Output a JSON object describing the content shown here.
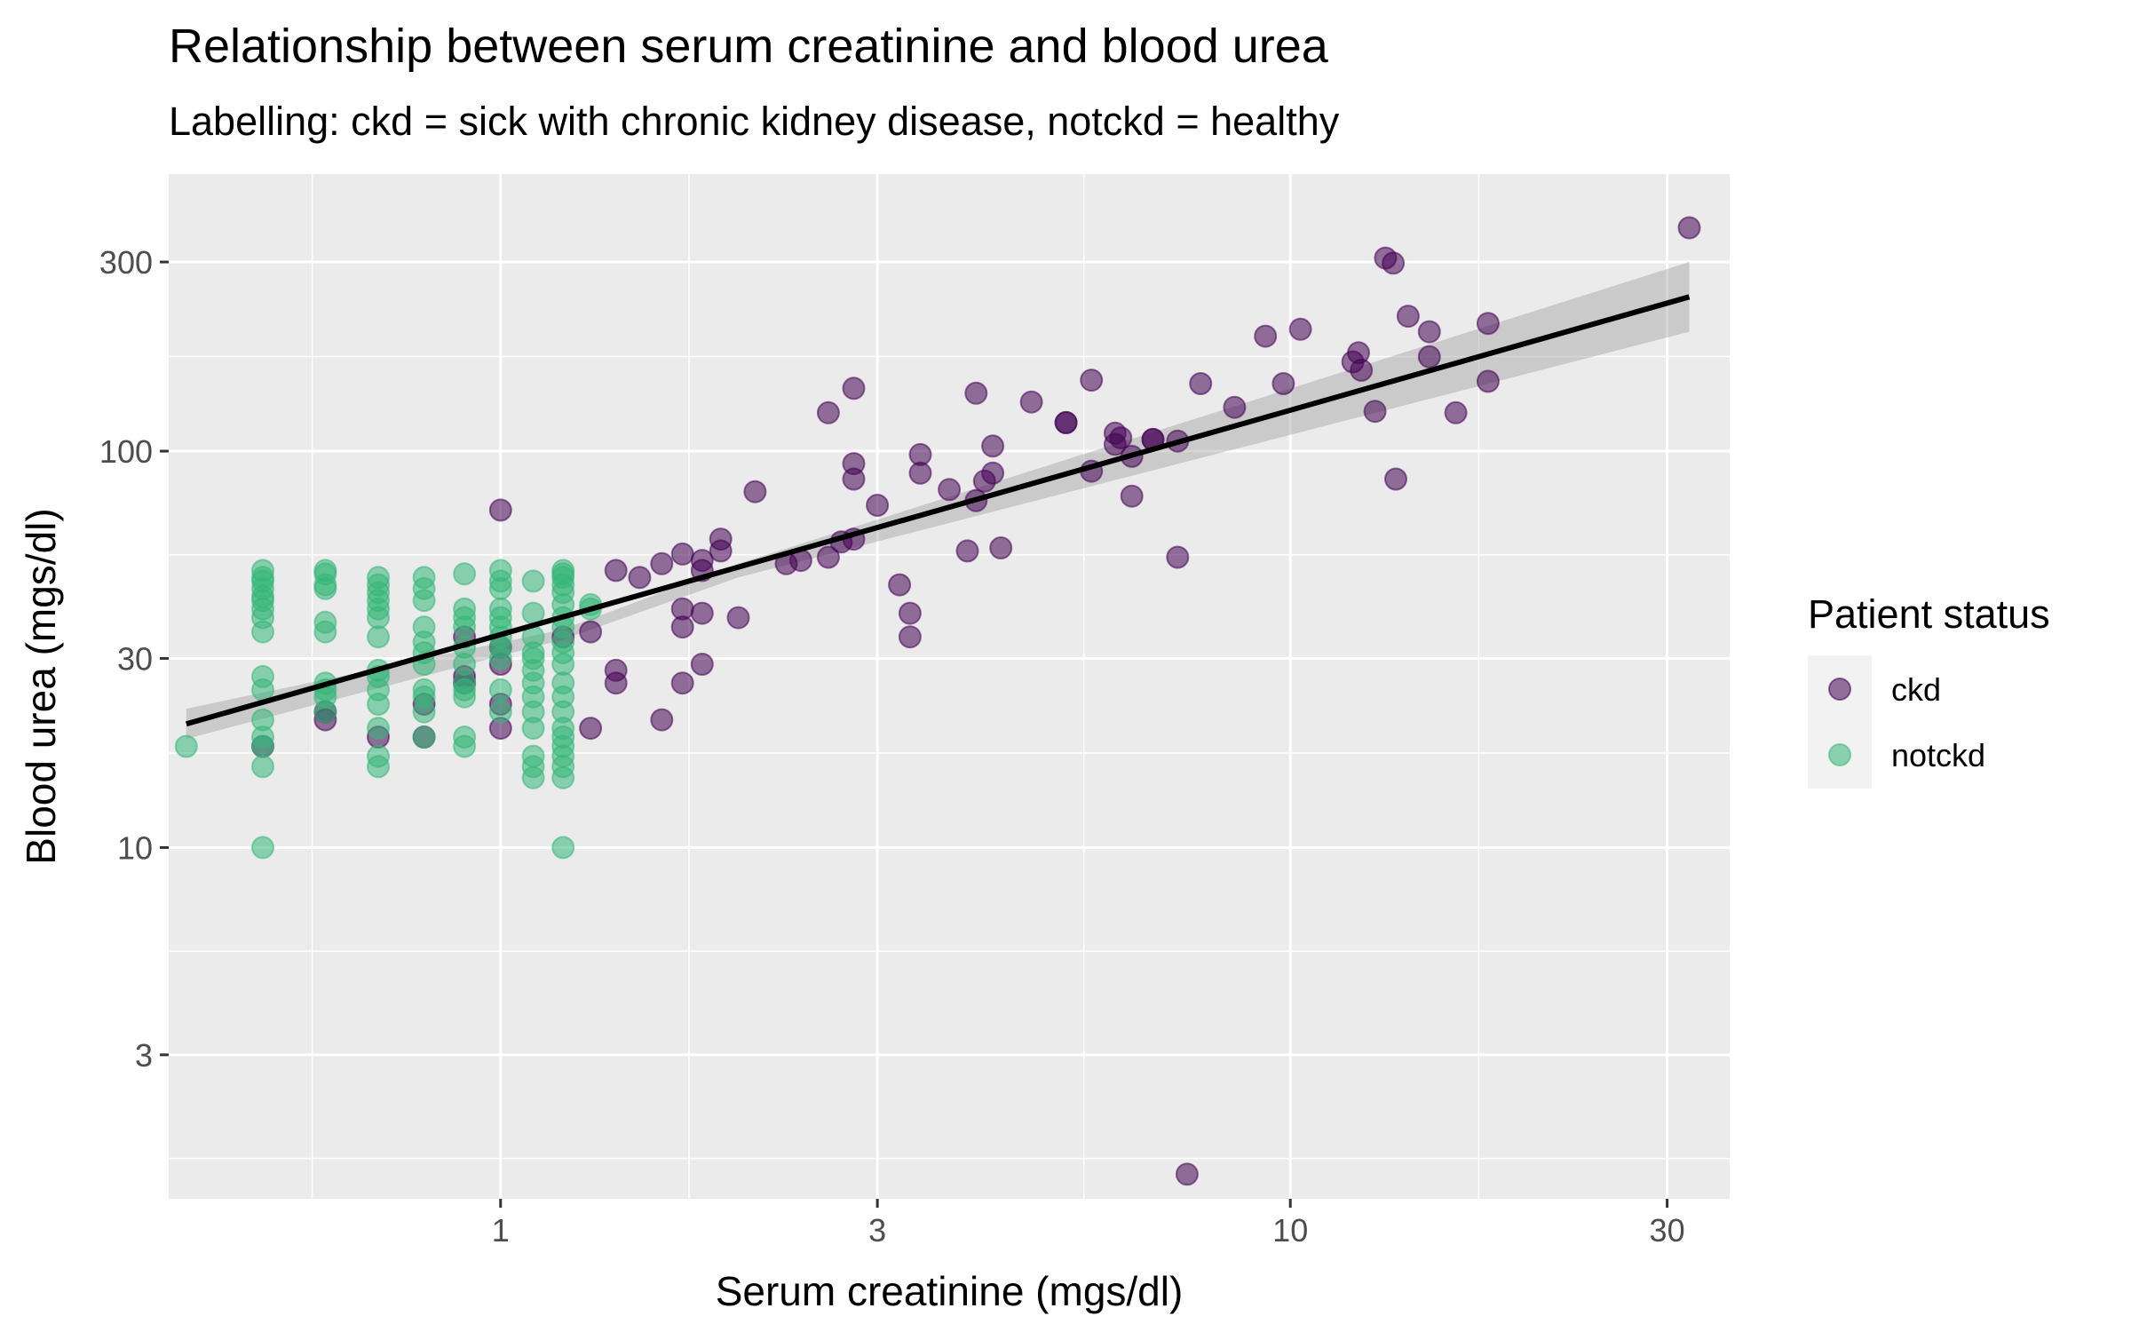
{
  "chart_data": {
    "type": "scatter",
    "title": "Relationship between serum creatinine and blood urea",
    "subtitle": "Labelling: ckd = sick with chronic kidney disease, notckd = healthy",
    "xlabel": "Serum creatinine (mgs/dl)",
    "ylabel": "Blood urea (mgs/dl)",
    "x_scale": "log10",
    "y_scale": "log10",
    "xlim": [
      0.38,
      36
    ],
    "ylim": [
      1.3,
      500
    ],
    "x_ticks": [
      {
        "value": 1,
        "label": "1"
      },
      {
        "value": 3,
        "label": "3"
      },
      {
        "value": 10,
        "label": "10"
      },
      {
        "value": 30,
        "label": "30"
      }
    ],
    "y_ticks": [
      {
        "value": 3,
        "label": "3"
      },
      {
        "value": 10,
        "label": "10"
      },
      {
        "value": 30,
        "label": "30"
      },
      {
        "value": 100,
        "label": "100"
      },
      {
        "value": 300,
        "label": "300"
      }
    ],
    "grid": true,
    "legend": {
      "title": "Patient status",
      "position": "right"
    },
    "series": [
      {
        "name": "ckd",
        "color": "#440154",
        "points": [
          [
            0.5,
            18
          ],
          [
            0.6,
            22
          ],
          [
            0.6,
            21
          ],
          [
            0.7,
            19
          ],
          [
            0.8,
            23
          ],
          [
            0.8,
            19
          ],
          [
            0.9,
            26
          ],
          [
            0.9,
            27
          ],
          [
            0.9,
            34
          ],
          [
            1.0,
            71
          ],
          [
            1.0,
            29
          ],
          [
            1.0,
            23
          ],
          [
            1.0,
            20
          ],
          [
            1.0,
            32
          ],
          [
            1.2,
            34
          ],
          [
            1.3,
            35
          ],
          [
            1.3,
            20
          ],
          [
            1.4,
            50
          ],
          [
            1.4,
            26
          ],
          [
            1.4,
            28
          ],
          [
            1.5,
            48
          ],
          [
            1.6,
            52
          ],
          [
            1.6,
            21
          ],
          [
            1.7,
            55
          ],
          [
            1.7,
            26
          ],
          [
            1.7,
            36
          ],
          [
            1.7,
            40
          ],
          [
            1.8,
            50
          ],
          [
            1.8,
            53
          ],
          [
            1.8,
            39
          ],
          [
            1.8,
            29
          ],
          [
            1.9,
            56
          ],
          [
            1.9,
            60
          ],
          [
            2.0,
            38
          ],
          [
            2.1,
            79
          ],
          [
            2.3,
            52
          ],
          [
            2.4,
            53
          ],
          [
            2.6,
            54
          ],
          [
            2.6,
            125
          ],
          [
            2.7,
            59
          ],
          [
            2.8,
            60
          ],
          [
            2.8,
            93
          ],
          [
            2.8,
            144
          ],
          [
            2.8,
            85
          ],
          [
            3.0,
            73
          ],
          [
            3.2,
            46
          ],
          [
            3.3,
            39
          ],
          [
            3.3,
            34
          ],
          [
            3.4,
            88
          ],
          [
            3.4,
            98
          ],
          [
            3.7,
            80
          ],
          [
            3.9,
            56
          ],
          [
            4.0,
            75
          ],
          [
            4.0,
            140
          ],
          [
            4.1,
            84
          ],
          [
            4.2,
            88
          ],
          [
            4.2,
            103
          ],
          [
            4.3,
            57
          ],
          [
            4.7,
            133
          ],
          [
            5.2,
            118
          ],
          [
            5.2,
            118
          ],
          [
            5.6,
            151
          ],
          [
            5.6,
            89
          ],
          [
            6.0,
            111
          ],
          [
            6.0,
            104
          ],
          [
            6.1,
            108
          ],
          [
            6.3,
            97
          ],
          [
            6.3,
            77
          ],
          [
            6.7,
            107
          ],
          [
            6.7,
            107
          ],
          [
            7.2,
            106
          ],
          [
            7.2,
            54
          ],
          [
            7.4,
            1.5
          ],
          [
            7.7,
            148
          ],
          [
            8.5,
            129
          ],
          [
            9.3,
            195
          ],
          [
            9.8,
            148
          ],
          [
            10.3,
            203
          ],
          [
            12.0,
            168
          ],
          [
            12.2,
            177
          ],
          [
            12.3,
            160
          ],
          [
            12.8,
            126
          ],
          [
            13.2,
            307
          ],
          [
            13.5,
            298
          ],
          [
            13.6,
            85
          ],
          [
            14.1,
            219
          ],
          [
            15.0,
            200
          ],
          [
            15.0,
            173
          ],
          [
            16.2,
            125
          ],
          [
            17.8,
            210
          ],
          [
            17.8,
            150
          ],
          [
            32.0,
            366
          ]
        ]
      },
      {
        "name": "notckd",
        "color": "#35b779",
        "points": [
          [
            0.4,
            18
          ],
          [
            0.5,
            10
          ],
          [
            0.5,
            16
          ],
          [
            0.5,
            18
          ],
          [
            0.5,
            19
          ],
          [
            0.5,
            21
          ],
          [
            0.5,
            25
          ],
          [
            0.5,
            27
          ],
          [
            0.5,
            35
          ],
          [
            0.5,
            38
          ],
          [
            0.5,
            40
          ],
          [
            0.5,
            42
          ],
          [
            0.5,
            43
          ],
          [
            0.5,
            45
          ],
          [
            0.5,
            47
          ],
          [
            0.5,
            48
          ],
          [
            0.5,
            50
          ],
          [
            0.6,
            22
          ],
          [
            0.6,
            24
          ],
          [
            0.6,
            25
          ],
          [
            0.6,
            26
          ],
          [
            0.6,
            35
          ],
          [
            0.6,
            37
          ],
          [
            0.6,
            45
          ],
          [
            0.6,
            46
          ],
          [
            0.6,
            49
          ],
          [
            0.6,
            50
          ],
          [
            0.7,
            16
          ],
          [
            0.7,
            17
          ],
          [
            0.7,
            20
          ],
          [
            0.7,
            23
          ],
          [
            0.7,
            25
          ],
          [
            0.7,
            27
          ],
          [
            0.7,
            28
          ],
          [
            0.7,
            34
          ],
          [
            0.7,
            38
          ],
          [
            0.7,
            40
          ],
          [
            0.7,
            42
          ],
          [
            0.7,
            44
          ],
          [
            0.7,
            46
          ],
          [
            0.7,
            48
          ],
          [
            0.8,
            19
          ],
          [
            0.8,
            22
          ],
          [
            0.8,
            24
          ],
          [
            0.8,
            25
          ],
          [
            0.8,
            29
          ],
          [
            0.8,
            31
          ],
          [
            0.8,
            33
          ],
          [
            0.8,
            36
          ],
          [
            0.8,
            42
          ],
          [
            0.8,
            45
          ],
          [
            0.8,
            48
          ],
          [
            0.9,
            18
          ],
          [
            0.9,
            19
          ],
          [
            0.9,
            24
          ],
          [
            0.9,
            25
          ],
          [
            0.9,
            26
          ],
          [
            0.9,
            29
          ],
          [
            0.9,
            32
          ],
          [
            0.9,
            36
          ],
          [
            0.9,
            38
          ],
          [
            0.9,
            40
          ],
          [
            0.9,
            49
          ],
          [
            1.0,
            22
          ],
          [
            1.0,
            25
          ],
          [
            1.0,
            30
          ],
          [
            1.0,
            32
          ],
          [
            1.0,
            34
          ],
          [
            1.0,
            36
          ],
          [
            1.0,
            38
          ],
          [
            1.0,
            40
          ],
          [
            1.0,
            45
          ],
          [
            1.0,
            47
          ],
          [
            1.0,
            50
          ],
          [
            1.1,
            15
          ],
          [
            1.1,
            16
          ],
          [
            1.1,
            17
          ],
          [
            1.1,
            20
          ],
          [
            1.1,
            22
          ],
          [
            1.1,
            24
          ],
          [
            1.1,
            26
          ],
          [
            1.1,
            28
          ],
          [
            1.1,
            30
          ],
          [
            1.1,
            31
          ],
          [
            1.1,
            34
          ],
          [
            1.1,
            39
          ],
          [
            1.1,
            47
          ],
          [
            1.2,
            10
          ],
          [
            1.2,
            15
          ],
          [
            1.2,
            16
          ],
          [
            1.2,
            17
          ],
          [
            1.2,
            18
          ],
          [
            1.2,
            19
          ],
          [
            1.2,
            20
          ],
          [
            1.2,
            22
          ],
          [
            1.2,
            24
          ],
          [
            1.2,
            26
          ],
          [
            1.2,
            29
          ],
          [
            1.2,
            31
          ],
          [
            1.2,
            33
          ],
          [
            1.2,
            36
          ],
          [
            1.2,
            38
          ],
          [
            1.2,
            41
          ],
          [
            1.2,
            44
          ],
          [
            1.2,
            46
          ],
          [
            1.2,
            48
          ],
          [
            1.2,
            49
          ],
          [
            1.2,
            50
          ],
          [
            1.3,
            40
          ],
          [
            1.3,
            41
          ]
        ]
      }
    ],
    "fit": {
      "method": "linear regression (log-log)",
      "x_range": [
        0.4,
        32
      ],
      "line": [
        [
          0.4,
          20.5
        ],
        [
          32,
          245
        ]
      ],
      "ribbon_lower": [
        [
          0.4,
          18.8
        ],
        [
          1.2,
          33.5
        ],
        [
          2.0,
          48
        ],
        [
          32,
          200
        ]
      ],
      "ribbon_upper": [
        [
          0.4,
          22.4
        ],
        [
          1.2,
          35.5
        ],
        [
          2.0,
          52
        ],
        [
          32,
          300
        ]
      ]
    }
  }
}
